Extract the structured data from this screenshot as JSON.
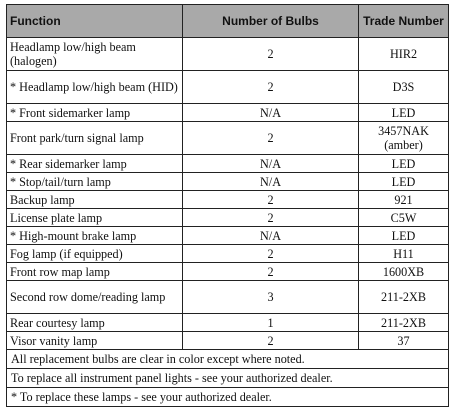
{
  "table": {
    "headers": {
      "function": "Function",
      "bulbs": "Number of Bulbs",
      "trade": "Trade Number"
    },
    "rows": [
      {
        "function": "Headlamp low/high beam (halogen)",
        "bulbs": "2",
        "trade": "HIR2"
      },
      {
        "function": "* Headlamp low/high beam (HID)",
        "bulbs": "2",
        "trade": "D3S"
      },
      {
        "function": "* Front sidemarker lamp",
        "bulbs": "N/A",
        "trade": "LED"
      },
      {
        "function": "Front park/turn signal lamp",
        "bulbs": "2",
        "trade": "3457NAK (amber)"
      },
      {
        "function": "* Rear sidemarker lamp",
        "bulbs": "N/A",
        "trade": "LED"
      },
      {
        "function": "* Stop/tail/turn lamp",
        "bulbs": "N/A",
        "trade": "LED"
      },
      {
        "function": "Backup lamp",
        "bulbs": "2",
        "trade": "921"
      },
      {
        "function": "License plate lamp",
        "bulbs": "2",
        "trade": "C5W"
      },
      {
        "function": "* High-mount brake lamp",
        "bulbs": "N/A",
        "trade": "LED"
      },
      {
        "function": "Fog lamp (if equipped)",
        "bulbs": "2",
        "trade": "H11"
      },
      {
        "function": "Front row map lamp",
        "bulbs": "2",
        "trade": "1600XB"
      },
      {
        "function": "Second row dome/reading lamp",
        "bulbs": "3",
        "trade": "211-2XB"
      },
      {
        "function": "Rear courtesy lamp",
        "bulbs": "1",
        "trade": "211-2XB"
      },
      {
        "function": "Visor vanity lamp",
        "bulbs": "2",
        "trade": "37"
      }
    ],
    "notes": [
      "All replacement bulbs are clear in color except where noted.",
      "To replace all instrument panel lights - see your authorized dealer.",
      "* To replace these lamps - see your authorized dealer."
    ]
  }
}
